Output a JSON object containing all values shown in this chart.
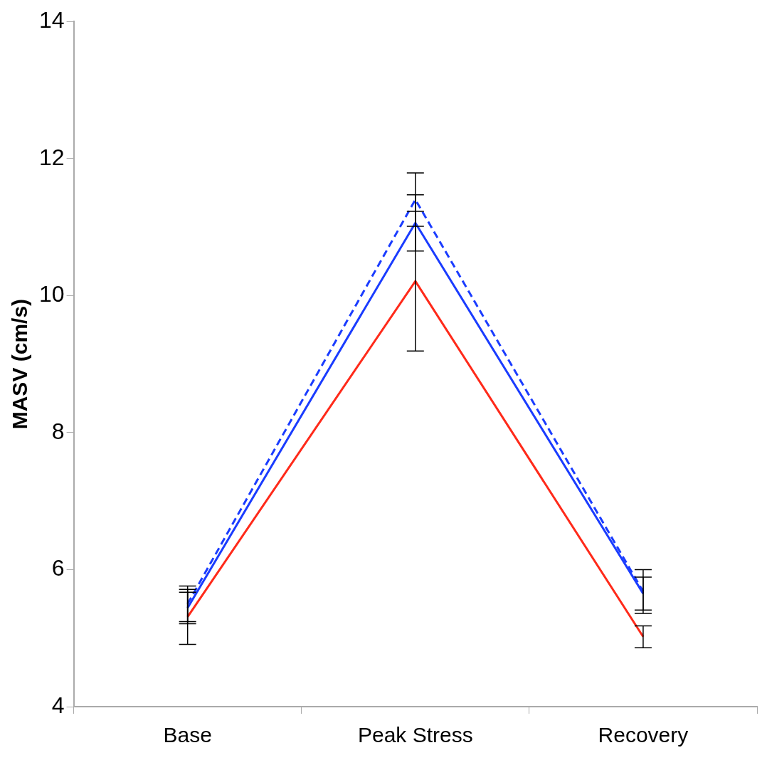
{
  "chart_data": {
    "type": "line",
    "ylabel": "MASV (cm/s)",
    "categories": [
      "Base",
      "Peak Stress",
      "Recovery"
    ],
    "ylim": [
      4,
      14
    ],
    "yticks": [
      4,
      6,
      8,
      10,
      12,
      14
    ],
    "grid": false,
    "legend": false,
    "marker": "none",
    "series": [
      {
        "color": "#ff2a1a",
        "values": [
          5.31,
          10.21,
          5.02
        ],
        "errors": [
          0.4,
          1.02,
          0.16
        ],
        "line_style": "solid"
      },
      {
        "color": "#1a3cff",
        "values": [
          5.44,
          11.06,
          5.65
        ],
        "errors": [
          0.23,
          0.41,
          0.24
        ],
        "line_style": "solid"
      },
      {
        "color": "#1a3cff",
        "values": [
          5.5,
          11.4,
          5.68
        ],
        "errors": [
          0.26,
          0.39,
          0.32
        ],
        "line_style": "dashed"
      }
    ]
  }
}
